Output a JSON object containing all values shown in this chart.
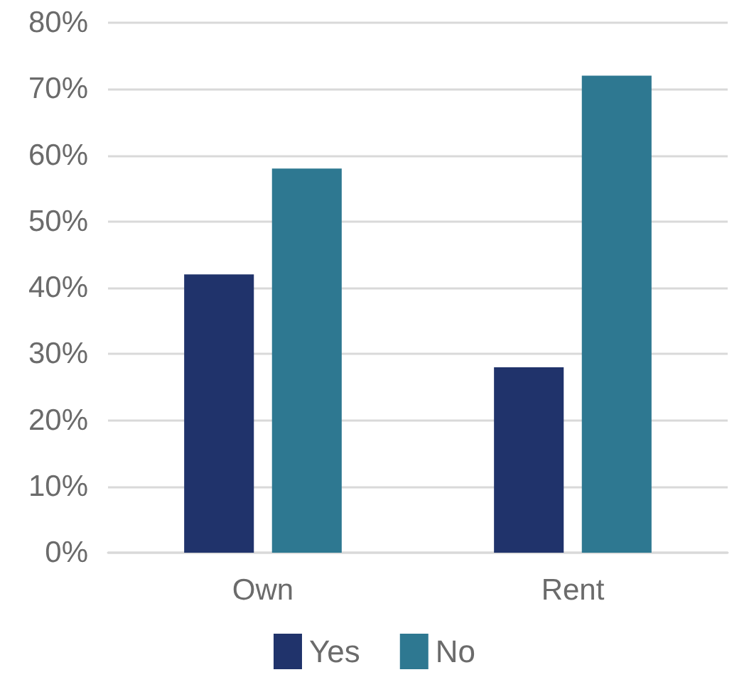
{
  "chart_data": {
    "type": "bar",
    "categories": [
      "Own",
      "Rent"
    ],
    "series": [
      {
        "name": "Yes",
        "color": "#20336b",
        "values": [
          42,
          28
        ]
      },
      {
        "name": "No",
        "color": "#2e7891",
        "values": [
          58,
          72
        ]
      }
    ],
    "ylim": [
      0,
      80
    ],
    "yticks": [
      {
        "value": 0,
        "label": "0%"
      },
      {
        "value": 10,
        "label": "10%"
      },
      {
        "value": 20,
        "label": "20%"
      },
      {
        "value": 30,
        "label": "30%"
      },
      {
        "value": 40,
        "label": "40%"
      },
      {
        "value": 50,
        "label": "50%"
      },
      {
        "value": 60,
        "label": "60%"
      },
      {
        "value": 70,
        "label": "70%"
      },
      {
        "value": 80,
        "label": "80%"
      }
    ],
    "grid": "y",
    "legend": "bottom"
  }
}
